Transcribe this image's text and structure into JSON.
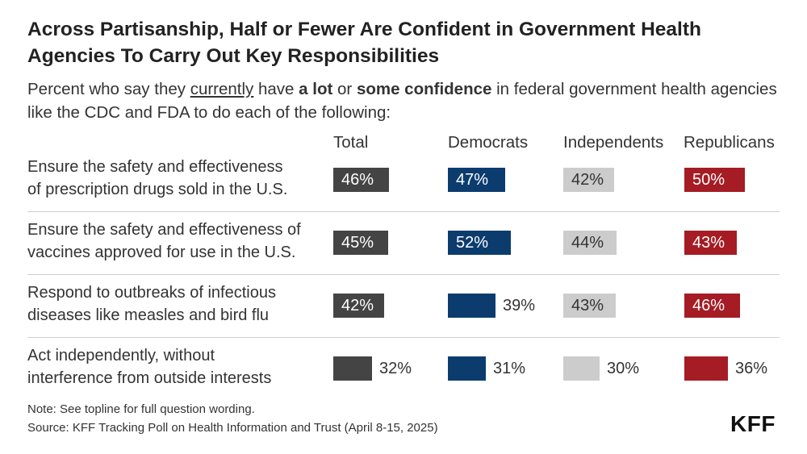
{
  "header": {
    "title": "Across Partisanship, Half or Fewer Are Confident in Government Health Agencies To Carry Out Key Responsibilities",
    "subtitle_parts": [
      "Percent who say they ",
      "currently",
      " have ",
      "a lot",
      " or ",
      "some confidence",
      " in federal government health agencies like the CDC and FDA to do each of the following:"
    ]
  },
  "chart_data": {
    "type": "bar",
    "title": "Across Partisanship, Half or Fewer Are Confident in Government Health Agencies To Carry Out Key Responsibilities",
    "categories": [
      "Ensure the safety and effectiveness of prescription drugs sold in the U.S.",
      "Ensure the safety and effectiveness of vaccines approved for use in the U.S.",
      "Respond to outbreaks of infectious diseases like measles and bird flu",
      "Act independently, without interference from outside interests"
    ],
    "category_lines": [
      [
        "Ensure the safety and effectiveness",
        "of prescription drugs sold in the U.S."
      ],
      [
        "Ensure the safety and effectiveness of",
        "vaccines approved for use in the U.S."
      ],
      [
        "Respond to outbreaks of infectious",
        "diseases like measles and bird flu"
      ],
      [
        "Act independently, without",
        "interference from outside interests"
      ]
    ],
    "series": [
      {
        "name": "Total",
        "color": "#444444",
        "text_color": "#ffffff",
        "values": [
          46,
          45,
          42,
          32
        ]
      },
      {
        "name": "Democrats",
        "color": "#0c3c6e",
        "text_color": "#ffffff",
        "values": [
          47,
          52,
          39,
          31
        ]
      },
      {
        "name": "Independents",
        "color": "#cccccc",
        "text_color": "#333333",
        "values": [
          42,
          44,
          43,
          30
        ]
      },
      {
        "name": "Republicans",
        "color": "#a51c24",
        "text_color": "#ffffff",
        "values": [
          50,
          43,
          46,
          36
        ]
      }
    ],
    "value_suffix": "%",
    "xlabel": "",
    "ylabel": ""
  },
  "footer": {
    "note": "Note: See topline for full question wording.",
    "source": "Source: KFF Tracking Poll on Health Information and Trust (April 8-15, 2025)",
    "logo": "KFF"
  }
}
